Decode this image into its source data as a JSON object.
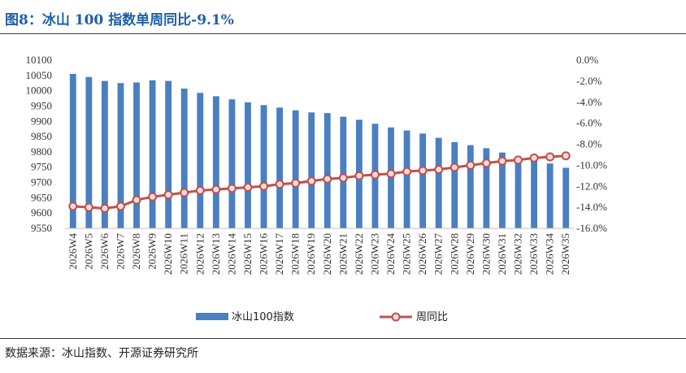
{
  "title": "图8：冰山 100 指数单周同比-9.1%",
  "source": "数据来源：冰山指数、开源证券研究所",
  "colors": {
    "bar": "#4a7fc1",
    "line": "#c0504d",
    "marker_fill": "#f2dcdb",
    "title": "#1f5fa8"
  },
  "chart_data": {
    "type": "bar",
    "categories": [
      "2026W4",
      "2026W5",
      "2026W6",
      "2026W7",
      "2026W8",
      "2026W9",
      "2026W10",
      "2026W11",
      "2026W12",
      "2026W13",
      "2026W14",
      "2026W15",
      "2026W16",
      "2026W17",
      "2026W18",
      "2026W19",
      "2026W20",
      "2026W21",
      "2026W22",
      "2026W23",
      "2026W24",
      "2026W25",
      "2026W26",
      "2026W27",
      "2026W28",
      "2026W29",
      "2026W30",
      "2026W31",
      "2026W32",
      "2026W33",
      "2026W34",
      "2026W35"
    ],
    "series": [
      {
        "name": "冰山100指数",
        "type": "bar",
        "axis": "left",
        "values": [
          10055,
          10045,
          10032,
          10025,
          10027,
          10034,
          10032,
          10007,
          9993,
          9982,
          9972,
          9962,
          9953,
          9945,
          9936,
          9929,
          9927,
          9915,
          9905,
          9892,
          9880,
          9870,
          9860,
          9846,
          9832,
          9822,
          9812,
          9798,
          9785,
          9773,
          9762,
          9748
        ]
      },
      {
        "name": "周同比",
        "type": "line",
        "axis": "right",
        "values": [
          -13.9,
          -14.0,
          -14.1,
          -13.9,
          -13.3,
          -13.0,
          -12.8,
          -12.6,
          -12.4,
          -12.3,
          -12.2,
          -12.1,
          -12.0,
          -11.8,
          -11.7,
          -11.5,
          -11.3,
          -11.2,
          -11.0,
          -10.9,
          -10.8,
          -10.6,
          -10.5,
          -10.4,
          -10.2,
          -10.0,
          -9.8,
          -9.6,
          -9.5,
          -9.3,
          -9.2,
          -9.1
        ]
      }
    ],
    "y_left": {
      "ylim": [
        9550,
        10100
      ],
      "ticks": [
        "10100",
        "10050",
        "10000",
        "9950",
        "9900",
        "9850",
        "9800",
        "9750",
        "9700",
        "9650",
        "9600",
        "9550"
      ]
    },
    "y_right": {
      "ylim": [
        -16,
        0
      ],
      "ticks": [
        "0.0%",
        "-2.0%",
        "-4.0%",
        "-6.0%",
        "-8.0%",
        "-10.0%",
        "-12.0%",
        "-14.0%",
        "-16.0%"
      ]
    },
    "legend": {
      "placement": "bottom",
      "entries": [
        "冰山100指数",
        "周同比"
      ]
    },
    "grid": false
  }
}
